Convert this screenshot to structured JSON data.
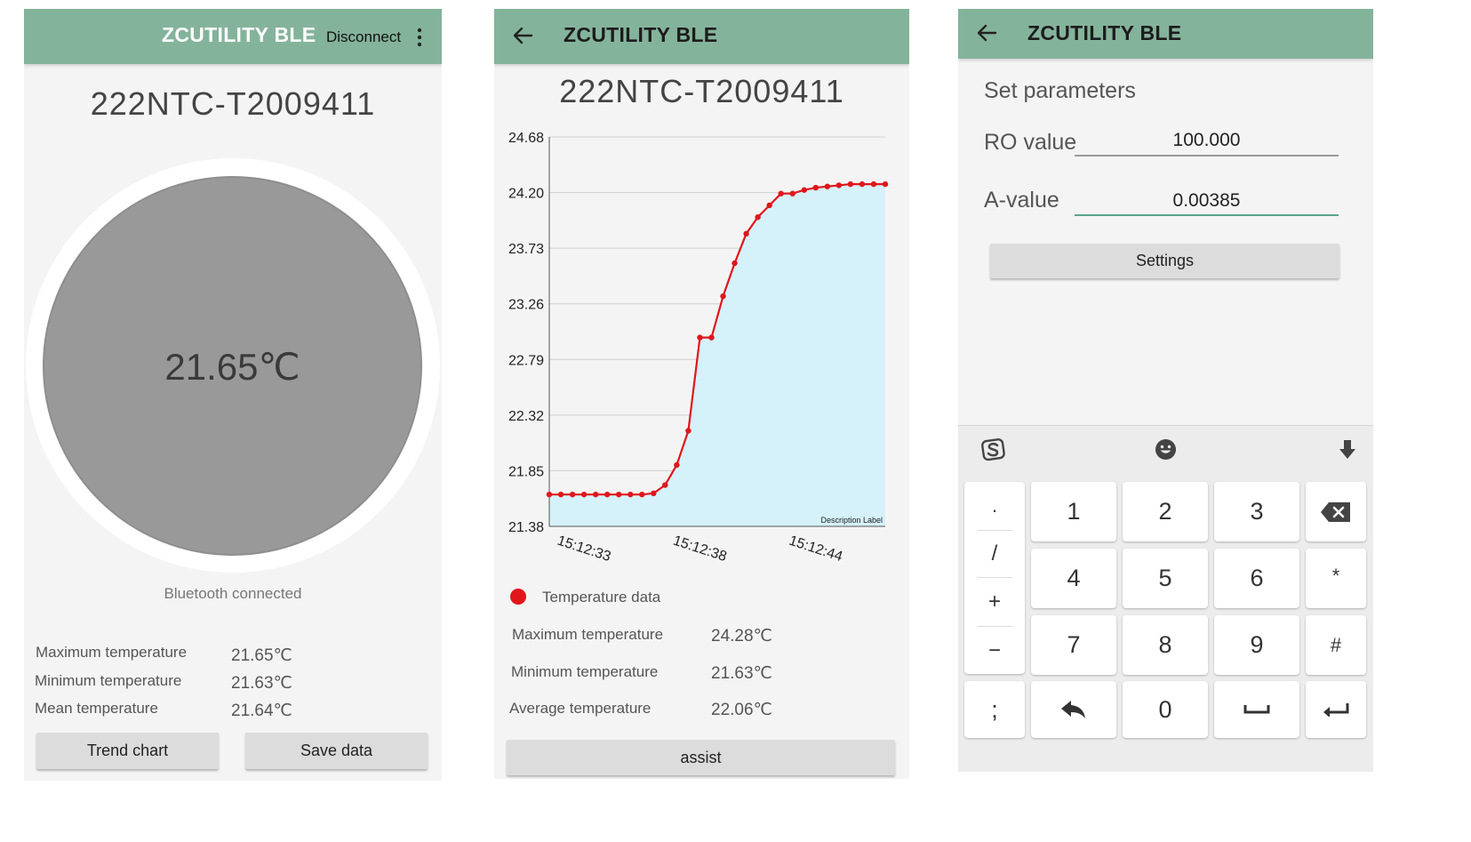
{
  "screen1": {
    "app_title": "ZCUTILITY BLE",
    "disconnect_label": "Disconnect",
    "device_name": "222NTC-T2009411",
    "current_temperature": "21.65℃",
    "status": "Bluetooth connected",
    "stats": [
      {
        "label": "Maximum temperature",
        "value": "21.65℃"
      },
      {
        "label": "Minimum temperature",
        "value": "21.63℃"
      },
      {
        "label": "Mean temperature",
        "value": "21.64℃"
      }
    ],
    "trend_button": "Trend chart",
    "save_button": "Save data",
    "colors": {
      "header": "#84b39b",
      "gauge": "#999999"
    }
  },
  "screen2": {
    "app_title": "ZCUTILITY BLE",
    "device_name": "222NTC-T2009411",
    "legend_label": "Temperature data",
    "stats": [
      {
        "label": "Maximum temperature",
        "value": "24.28℃"
      },
      {
        "label": "Minimum temperature",
        "value": "21.63℃"
      },
      {
        "label": "Average temperature",
        "value": "22.06℃"
      }
    ],
    "assist_button": "assist"
  },
  "chart_data": {
    "type": "area",
    "y_ticks": [
      "24.68",
      "24.20",
      "23.73",
      "23.26",
      "22.79",
      "22.32",
      "21.85",
      "21.38"
    ],
    "ylim": [
      21.38,
      24.68
    ],
    "x_tick_labels": [
      "15:12:33",
      "15:12:38",
      "15:12:44"
    ],
    "description_label": "Description Label",
    "grid": true,
    "series": [
      {
        "name": "Temperature data",
        "color": "#e0161b",
        "fill": "#d5f1fa",
        "values": [
          21.65,
          21.65,
          21.65,
          21.65,
          21.65,
          21.65,
          21.65,
          21.65,
          21.65,
          21.66,
          21.73,
          21.9,
          22.19,
          22.98,
          22.98,
          23.33,
          23.61,
          23.86,
          24.0,
          24.1,
          24.2,
          24.2,
          24.23,
          24.25,
          24.26,
          24.27,
          24.28,
          24.28,
          24.28,
          24.28
        ]
      }
    ]
  },
  "screen3": {
    "app_title": "ZCUTILITY BLE",
    "section_title": "Set parameters",
    "ro_label": "RO value",
    "ro_value": "100.000",
    "a_label": "A-value",
    "a_value": "0.00385",
    "settings_button": "Settings",
    "keyboard": {
      "symbols": [
        ".",
        "/",
        "+",
        "−",
        ";"
      ],
      "digits": [
        "1",
        "2",
        "3",
        "4",
        "5",
        "6",
        "7",
        "8",
        "9",
        "0"
      ],
      "right_keys": [
        "*",
        "#"
      ]
    },
    "colors": {
      "field_focus": "#5aa58a"
    }
  }
}
